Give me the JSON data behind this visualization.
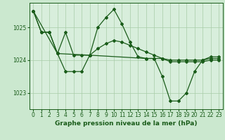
{
  "title": "Graphe pression niveau de la mer (hPa)",
  "background_color": "#cbe8cf",
  "plot_bg_color": "#d8eedc",
  "grid_color": "#a8cca8",
  "line_color": "#1a5c1a",
  "marker_color": "#1a5c1a",
  "xlim": [
    -0.5,
    23.5
  ],
  "ylim": [
    1022.5,
    1025.75
  ],
  "yticks": [
    1023,
    1024,
    1025
  ],
  "xticks": [
    0,
    1,
    2,
    3,
    4,
    5,
    6,
    7,
    8,
    9,
    10,
    11,
    12,
    13,
    14,
    15,
    16,
    17,
    18,
    19,
    20,
    21,
    22,
    23
  ],
  "series1_x": [
    0,
    1,
    2,
    3,
    4,
    5,
    6,
    7,
    8,
    9,
    10,
    11,
    12,
    13,
    14,
    15,
    16,
    17,
    18,
    19,
    20,
    21,
    22,
    23
  ],
  "series1_y": [
    1025.5,
    1024.85,
    1024.85,
    1024.2,
    1023.65,
    1023.65,
    1023.65,
    1024.15,
    1025.0,
    1025.3,
    1025.55,
    1025.1,
    1024.55,
    1024.1,
    1024.05,
    1024.05,
    1023.5,
    1022.75,
    1022.75,
    1023.0,
    1023.65,
    1024.0,
    1024.1,
    1024.1
  ],
  "series2_x": [
    0,
    1,
    2,
    3,
    4,
    5,
    6,
    7,
    8,
    9,
    10,
    11,
    12,
    13,
    14,
    15,
    16,
    17,
    18,
    19,
    20,
    21,
    22,
    23
  ],
  "series2_y": [
    1025.5,
    1024.85,
    1024.85,
    1024.2,
    1024.85,
    1024.15,
    1024.15,
    1024.15,
    1024.35,
    1024.5,
    1024.6,
    1024.55,
    1024.45,
    1024.35,
    1024.25,
    1024.15,
    1024.05,
    1023.95,
    1023.95,
    1023.95,
    1023.95,
    1023.95,
    1024.0,
    1024.0
  ],
  "series3_x": [
    0,
    3,
    7,
    14,
    15,
    16,
    17,
    18,
    19,
    20,
    21,
    22,
    23
  ],
  "series3_y": [
    1025.5,
    1024.2,
    1024.15,
    1024.05,
    1024.05,
    1024.05,
    1024.0,
    1024.0,
    1024.0,
    1024.0,
    1024.0,
    1024.05,
    1024.05
  ],
  "tick_fontsize": 5.5,
  "title_fontsize": 6.5,
  "linewidth": 0.9,
  "markersize": 2.0
}
